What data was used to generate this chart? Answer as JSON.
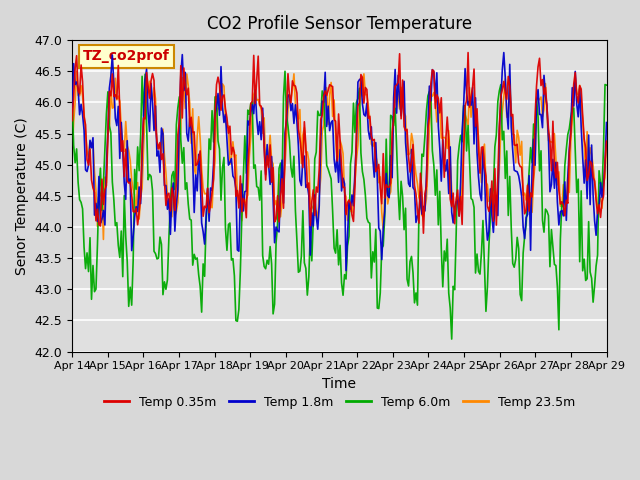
{
  "title": "CO2 Profile Sensor Temperature",
  "xlabel": "Time",
  "ylabel": "Senor Temperature (C)",
  "ylim": [
    42.0,
    47.0
  ],
  "yticks": [
    42.0,
    42.5,
    43.0,
    43.5,
    44.0,
    44.5,
    45.0,
    45.5,
    46.0,
    46.5,
    47.0
  ],
  "xtick_labels": [
    "Apr 14",
    "Apr 15",
    "Apr 16",
    "Apr 17",
    "Apr 18",
    "Apr 19",
    "Apr 20",
    "Apr 21",
    "Apr 22",
    "Apr 23",
    "Apr 24",
    "Apr 25",
    "Apr 26",
    "Apr 27",
    "Apr 28",
    "Apr 29"
  ],
  "legend_labels": [
    "Temp 0.35m",
    "Temp 1.8m",
    "Temp 6.0m",
    "Temp 23.5m"
  ],
  "colors": [
    "#dd0000",
    "#0000cc",
    "#00aa00",
    "#ff8800"
  ],
  "annotation_text": "TZ_co2prof",
  "annotation_color": "#cc0000",
  "annotation_bg": "#ffffcc",
  "annotation_border": "#cc8800",
  "background_color": "#d8d8d8",
  "plot_bg_color": "#e0e0e0",
  "grid_color": "#ffffff",
  "n_points": 360,
  "seed": 42
}
